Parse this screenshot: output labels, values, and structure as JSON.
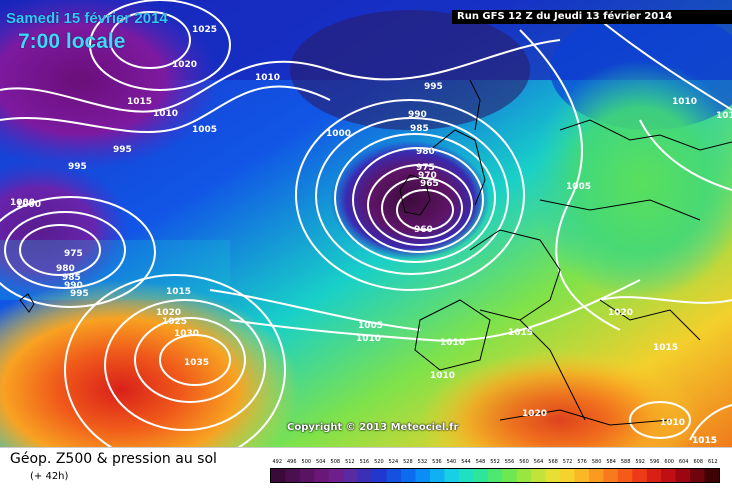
{
  "header": {
    "date": "Samedi 15 février 2014",
    "time": "7:00 locale",
    "run": "Run GFS 12 Z du Jeudi 13 février 2014"
  },
  "copyright": "Copyright © 2013 Meteociel.fr",
  "footer": {
    "title": "Géop. Z500 & pression au sol",
    "lead": "(+ 42h)"
  },
  "scale": {
    "ticks": [
      "492",
      "496",
      "500",
      "504",
      "508",
      "512",
      "516",
      "520",
      "524",
      "528",
      "532",
      "536",
      "540",
      "544",
      "548",
      "552",
      "556",
      "560",
      "564",
      "568",
      "572",
      "576",
      "580",
      "584",
      "588",
      "592",
      "596",
      "600",
      "604",
      "608",
      "612"
    ],
    "colors": [
      "#3a0a3a",
      "#4b0e4f",
      "#5a1262",
      "#6a1878",
      "#6f1f8c",
      "#5a2aa0",
      "#3b2fb8",
      "#2038d0",
      "#1650e0",
      "#0b6cf0",
      "#0a8ef5",
      "#0fb1f2",
      "#17cfe6",
      "#1fe0c0",
      "#2ee69a",
      "#4ce870",
      "#6ee850",
      "#98e640",
      "#c2e43a",
      "#e6e032",
      "#f7d22c",
      "#fbb826",
      "#fb9a20",
      "#f97a1c",
      "#f55a18",
      "#ec3b16",
      "#d92014",
      "#bf0f12",
      "#9b0610",
      "#70040c",
      "#3e0206"
    ]
  },
  "map": {
    "pressure_labels": [
      "1025",
      "1020",
      "1010",
      "1015",
      "1010",
      "1005",
      "995",
      "1000",
      "995",
      "1000",
      "975",
      "980",
      "985",
      "990",
      "995",
      "1015",
      "1020",
      "1025",
      "1030",
      "1035",
      "995",
      "990",
      "985",
      "980",
      "975",
      "970",
      "965",
      "960",
      "1000",
      "1005",
      "1010",
      "1010",
      "1015",
      "1010",
      "1020",
      "1005",
      "1010",
      "1015",
      "1010",
      "1015",
      "1020",
      "1010",
      "1015"
    ]
  }
}
